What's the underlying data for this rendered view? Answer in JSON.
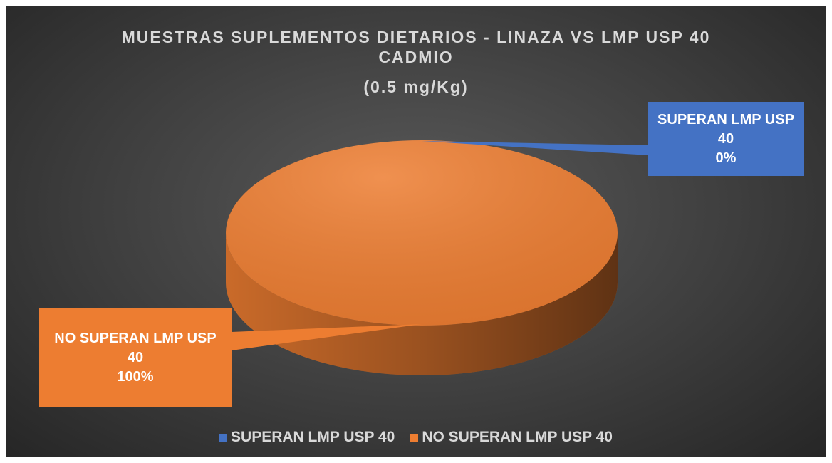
{
  "chart_data": {
    "type": "pie",
    "title": "MUESTRAS SUPLEMENTOS DIETARIOS - LINAZA VS LMP USP 40 CADMIO",
    "subtitle": "(0.5 mg/Kg)",
    "categories": [
      "SUPERAN LMP USP 40",
      "NO SUPERAN LMP USP 40"
    ],
    "values": [
      0,
      100
    ],
    "value_labels": [
      "0%",
      "100%"
    ],
    "colors": [
      "#4472c4",
      "#ed7d31"
    ],
    "legend": "bottom"
  }
}
